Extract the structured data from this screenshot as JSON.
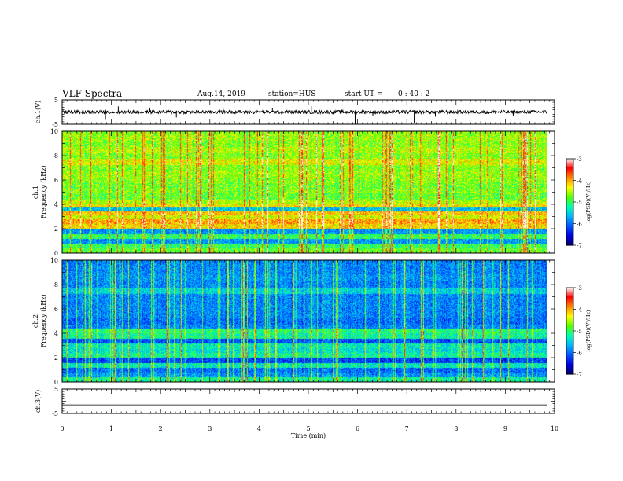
{
  "header": {
    "title": "VLF Spectra",
    "date": "Aug.14, 2019",
    "station": "station=HUS",
    "start_label": "start  UT  =",
    "start_time": "0 : 40 : 2"
  },
  "colors": {
    "axis": "#000000",
    "plot_background": "#00007a",
    "colormap": [
      "#000066",
      "#0000dd",
      "#0055ff",
      "#00b4ff",
      "#00ffb0",
      "#55ff00",
      "#ffff00",
      "#ff8800",
      "#ff0000",
      "#ffffff"
    ]
  },
  "chart_data": [
    {
      "type": "line",
      "panel": "ch.1 waveform",
      "ylabel": "ch.1(V)",
      "ylim": [
        -5,
        5
      ],
      "yticks": [
        "5",
        "-5"
      ],
      "baseline_value": 0,
      "noise_amplitude": 0.7,
      "spikes": [
        {
          "t": 0.88,
          "value": -3.2
        },
        {
          "t": 1.14,
          "value": 2.3
        },
        {
          "t": 1.78,
          "value": 1.8
        },
        {
          "t": 2.32,
          "value": -2.2
        },
        {
          "t": 3.27,
          "value": 1.8
        },
        {
          "t": 4.27,
          "value": 1.5
        },
        {
          "t": 5.06,
          "value": 2.4
        },
        {
          "t": 5.95,
          "value": -5.0
        },
        {
          "t": 6.31,
          "value": -1.6
        },
        {
          "t": 7.15,
          "value": -4.5
        },
        {
          "t": 7.58,
          "value": -1.9
        },
        {
          "t": 8.73,
          "value": 1.7
        },
        {
          "t": 9.16,
          "value": -1.5
        }
      ],
      "x_range_min": [
        0,
        9.85
      ]
    },
    {
      "type": "heatmap",
      "panel": "ch.1 spectrogram",
      "ylabel": "ch.1 Frequency (kHz)",
      "ylim": [
        0,
        10
      ],
      "yticks": [
        "0",
        "2",
        "4",
        "6",
        "8",
        "10"
      ],
      "x_range_min": [
        0,
        9.85
      ],
      "base_level": 0.58,
      "band_levels": [
        {
          "f_khz": 0.2,
          "level": 0.55
        },
        {
          "f_khz": 0.6,
          "level": 0.5
        },
        {
          "f_khz": 1.0,
          "level": 0.3
        },
        {
          "f_khz": 1.4,
          "level": 0.5
        },
        {
          "f_khz": 1.8,
          "level": 0.3
        },
        {
          "f_khz": 2.2,
          "level": 0.7
        },
        {
          "f_khz": 2.6,
          "level": 0.75
        },
        {
          "f_khz": 3.0,
          "level": 0.65
        },
        {
          "f_khz": 3.3,
          "level": 0.72
        },
        {
          "f_khz": 3.6,
          "level": 0.35
        },
        {
          "f_khz": 3.9,
          "level": 0.68
        },
        {
          "f_khz": 4.2,
          "level": 0.62
        },
        {
          "f_khz": 4.7,
          "level": 0.55
        },
        {
          "f_khz": 5.5,
          "level": 0.56
        },
        {
          "f_khz": 6.5,
          "level": 0.6
        },
        {
          "f_khz": 7.5,
          "level": 0.66
        },
        {
          "f_khz": 8.5,
          "level": 0.62
        },
        {
          "f_khz": 9.5,
          "level": 0.6
        }
      ],
      "colorbar": {
        "label": "log(PSD)(V²/Hz)",
        "range": [
          -7,
          -3
        ],
        "ticks": [
          "-3",
          "-4",
          "-5",
          "-6",
          "-7"
        ]
      }
    },
    {
      "type": "heatmap",
      "panel": "ch.2 spectrogram",
      "ylabel": "ch.2 Frequency (kHz)",
      "ylim": [
        0,
        10
      ],
      "yticks": [
        "0",
        "2",
        "4",
        "6",
        "8",
        "10"
      ],
      "x_range_min": [
        0,
        9.85
      ],
      "base_level": 0.28,
      "band_levels": [
        {
          "f_khz": 0.2,
          "level": 0.45
        },
        {
          "f_khz": 0.6,
          "level": 0.3
        },
        {
          "f_khz": 1.0,
          "level": 0.25
        },
        {
          "f_khz": 1.4,
          "level": 0.42
        },
        {
          "f_khz": 1.8,
          "level": 0.2
        },
        {
          "f_khz": 2.2,
          "level": 0.45
        },
        {
          "f_khz": 2.6,
          "level": 0.4
        },
        {
          "f_khz": 3.0,
          "level": 0.42
        },
        {
          "f_khz": 3.4,
          "level": 0.22
        },
        {
          "f_khz": 3.8,
          "level": 0.45
        },
        {
          "f_khz": 4.2,
          "level": 0.48
        },
        {
          "f_khz": 5.0,
          "level": 0.25
        },
        {
          "f_khz": 6.0,
          "level": 0.28
        },
        {
          "f_khz": 7.5,
          "level": 0.38
        },
        {
          "f_khz": 8.6,
          "level": 0.3
        },
        {
          "f_khz": 9.5,
          "level": 0.28
        }
      ],
      "colorbar": {
        "label": "log(PSD)(V²/Hz)",
        "range": [
          -7,
          -3
        ],
        "ticks": [
          "-3",
          "-4",
          "-5",
          "-6",
          "-7"
        ]
      }
    },
    {
      "type": "line",
      "panel": "ch.3 waveform",
      "ylabel": "ch.3(V)",
      "ylim": [
        -5,
        5
      ],
      "yticks": [
        "5",
        "-5"
      ],
      "baseline_value": -1.5,
      "noise_amplitude": 0,
      "x_range_min": [
        0,
        9.85
      ]
    }
  ],
  "x_axis": {
    "xlabel": "Time  (min)",
    "xlim": [
      0,
      10
    ],
    "ticks": [
      "0",
      "1",
      "2",
      "3",
      "4",
      "5",
      "6",
      "7",
      "8",
      "9",
      "10"
    ]
  }
}
